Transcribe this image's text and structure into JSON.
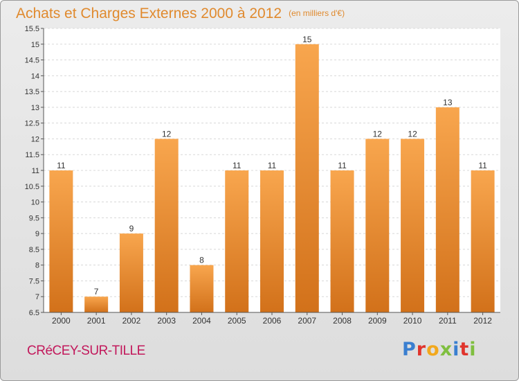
{
  "header": {
    "title": "Achats et Charges Externes 2000 à 2012",
    "unit": "(en milliers d'€)"
  },
  "footer": {
    "commune": "CRéCEY-SUR-TILLE",
    "logo_letters": [
      "P",
      "r",
      "o",
      "x",
      "i",
      "t",
      "i"
    ]
  },
  "colors": {
    "bar_top": "#f8a64e",
    "bar_bottom": "#d2711a",
    "title": "#e08a2e",
    "commune": "#c2185b"
  },
  "chart_data": {
    "type": "bar",
    "title": "Achats et Charges Externes 2000 à 2012",
    "subtitle": "(en milliers d'€)",
    "categories": [
      "2000",
      "2001",
      "2002",
      "2003",
      "2004",
      "2005",
      "2006",
      "2007",
      "2008",
      "2009",
      "2010",
      "2011",
      "2012"
    ],
    "values": [
      11,
      7,
      9,
      12,
      8,
      11,
      11,
      15,
      11,
      12,
      12,
      13,
      11
    ],
    "value_labels": [
      "11",
      "7",
      "9",
      "12",
      "8",
      "11",
      "11",
      "15",
      "11",
      "12",
      "12",
      "13",
      "11"
    ],
    "ylim": [
      6.5,
      15.5
    ],
    "yticks": [
      "6.5",
      "7",
      "7.5",
      "8",
      "8.5",
      "9",
      "9.5",
      "10",
      "10.5",
      "11",
      "11.5",
      "12",
      "12.5",
      "13",
      "13.5",
      "14",
      "14.5",
      "15",
      "15.5"
    ],
    "grid": true,
    "legend": "none"
  }
}
